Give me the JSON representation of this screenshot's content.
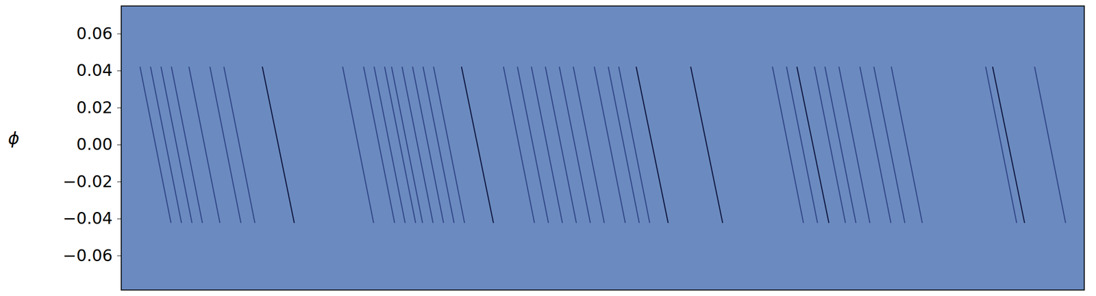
{
  "chart_data": {
    "type": "line",
    "ylabel": "ϕ",
    "xlim": [
      0,
      1
    ],
    "xticks": [],
    "tick_labels": "y",
    "ylim": [
      -0.0785,
      0.0751
    ],
    "yticks": [
      {
        "value": -0.06,
        "label": "−0.06"
      },
      {
        "value": -0.04,
        "label": "−0.04"
      },
      {
        "value": -0.02,
        "label": "−0.02"
      },
      {
        "value": 0,
        "label": "0.00"
      },
      {
        "value": 0.02,
        "label": "0.02"
      },
      {
        "value": 0.04,
        "label": "0.04"
      },
      {
        "value": 0.06,
        "label": "0.06"
      }
    ],
    "color": "#6b8bc0",
    "series": [
      {
        "color": "#34498a",
        "x": [
          0.0196,
          0.0516
        ],
        "values": [
          0.042,
          -0.042
        ]
      },
      {
        "color": "#34498a",
        "x": [
          0.0305,
          0.0625
        ],
        "values": [
          0.042,
          -0.042
        ]
      },
      {
        "color": "#34498a",
        "x": [
          0.0414,
          0.0734
        ],
        "values": [
          0.042,
          -0.042
        ]
      },
      {
        "color": "#34498a",
        "x": [
          0.0522,
          0.0842
        ],
        "values": [
          0.042,
          -0.042
        ]
      },
      {
        "color": "#34498a",
        "x": [
          0.0704,
          0.1024
        ],
        "values": [
          0.042,
          -0.042
        ]
      },
      {
        "color": "#34498a",
        "x": [
          0.0922,
          0.1242
        ],
        "values": [
          0.042,
          -0.042
        ]
      },
      {
        "color": "#34498a",
        "x": [
          0.1067,
          0.1387
        ],
        "values": [
          0.042,
          -0.042
        ]
      },
      {
        "color": "#141c45",
        "x": [
          0.1466,
          0.1796
        ],
        "values": [
          0.042,
          -0.042
        ]
      },
      {
        "color": "#34498a",
        "x": [
          0.23,
          0.262
        ],
        "values": [
          0.042,
          -0.042
        ]
      },
      {
        "color": "#34498a",
        "x": [
          0.2518,
          0.2838
        ],
        "values": [
          0.042,
          -0.042
        ]
      },
      {
        "color": "#34498a",
        "x": [
          0.2627,
          0.2947
        ],
        "values": [
          0.042,
          -0.042
        ]
      },
      {
        "color": "#34498a",
        "x": [
          0.2736,
          0.3056
        ],
        "values": [
          0.042,
          -0.042
        ]
      },
      {
        "color": "#34498a",
        "x": [
          0.2808,
          0.3128
        ],
        "values": [
          0.042,
          -0.042
        ]
      },
      {
        "color": "#34498a",
        "x": [
          0.2917,
          0.3237
        ],
        "values": [
          0.042,
          -0.042
        ]
      },
      {
        "color": "#34498a",
        "x": [
          0.3026,
          0.3346
        ],
        "values": [
          0.042,
          -0.042
        ]
      },
      {
        "color": "#34498a",
        "x": [
          0.3135,
          0.3455
        ],
        "values": [
          0.042,
          -0.042
        ]
      },
      {
        "color": "#34498a",
        "x": [
          0.3244,
          0.3564
        ],
        "values": [
          0.042,
          -0.042
        ]
      },
      {
        "color": "#141c45",
        "x": [
          0.3534,
          0.3864
        ],
        "values": [
          0.042,
          -0.042
        ]
      },
      {
        "color": "#34498a",
        "x": [
          0.397,
          0.429
        ],
        "values": [
          0.042,
          -0.042
        ]
      },
      {
        "color": "#34498a",
        "x": [
          0.4115,
          0.4435
        ],
        "values": [
          0.042,
          -0.042
        ]
      },
      {
        "color": "#34498a",
        "x": [
          0.426,
          0.458
        ],
        "values": [
          0.042,
          -0.042
        ]
      },
      {
        "color": "#34498a",
        "x": [
          0.4405,
          0.4725
        ],
        "values": [
          0.042,
          -0.042
        ]
      },
      {
        "color": "#34498a",
        "x": [
          0.455,
          0.487
        ],
        "values": [
          0.042,
          -0.042
        ]
      },
      {
        "color": "#34498a",
        "x": [
          0.4695,
          0.5015
        ],
        "values": [
          0.042,
          -0.042
        ]
      },
      {
        "color": "#34498a",
        "x": [
          0.4913,
          0.5233
        ],
        "values": [
          0.042,
          -0.042
        ]
      },
      {
        "color": "#34498a",
        "x": [
          0.5058,
          0.5378
        ],
        "values": [
          0.042,
          -0.042
        ]
      },
      {
        "color": "#34498a",
        "x": [
          0.5167,
          0.5487
        ],
        "values": [
          0.042,
          -0.042
        ]
      },
      {
        "color": "#141c45",
        "x": [
          0.5348,
          0.5678
        ],
        "values": [
          0.042,
          -0.042
        ]
      },
      {
        "color": "#141c45",
        "x": [
          0.5914,
          0.6244
        ],
        "values": [
          0.042,
          -0.042
        ]
      },
      {
        "color": "#34498a",
        "x": [
          0.6763,
          0.7083
        ],
        "values": [
          0.042,
          -0.042
        ]
      },
      {
        "color": "#34498a",
        "x": [
          0.6909,
          0.7229
        ],
        "values": [
          0.042,
          -0.042
        ]
      },
      {
        "color": "#141c45",
        "x": [
          0.7017,
          0.7347
        ],
        "values": [
          0.042,
          -0.042
        ]
      },
      {
        "color": "#34498a",
        "x": [
          0.7199,
          0.7519
        ],
        "values": [
          0.042,
          -0.042
        ]
      },
      {
        "color": "#34498a",
        "x": [
          0.7308,
          0.7628
        ],
        "values": [
          0.042,
          -0.042
        ]
      },
      {
        "color": "#34498a",
        "x": [
          0.7453,
          0.7773
        ],
        "values": [
          0.042,
          -0.042
        ]
      },
      {
        "color": "#34498a",
        "x": [
          0.7671,
          0.7991
        ],
        "values": [
          0.042,
          -0.042
        ]
      },
      {
        "color": "#34498a",
        "x": [
          0.7816,
          0.8136
        ],
        "values": [
          0.042,
          -0.042
        ]
      },
      {
        "color": "#34498a",
        "x": [
          0.7997,
          0.8317
        ],
        "values": [
          0.042,
          -0.042
        ]
      },
      {
        "color": "#34498a",
        "x": [
          0.8977,
          0.9297
        ],
        "values": [
          0.042,
          -0.042
        ]
      },
      {
        "color": "#141c45",
        "x": [
          0.9049,
          0.9379
        ],
        "values": [
          0.042,
          -0.042
        ]
      },
      {
        "color": "#34498a",
        "x": [
          0.9485,
          0.9805
        ],
        "values": [
          0.042,
          -0.042
        ]
      }
    ]
  }
}
